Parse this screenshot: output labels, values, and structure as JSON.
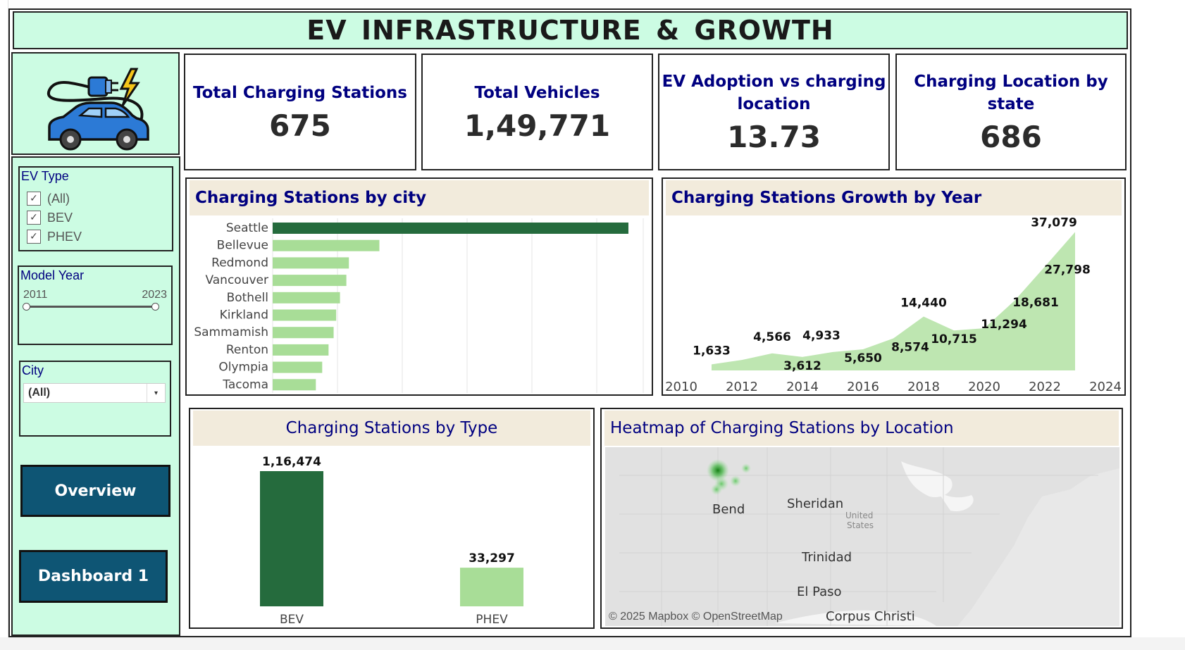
{
  "dashboard": {
    "title": "EV INFRASTRUCTURE & GROWTH"
  },
  "logo": {
    "icon": "ev-car-charger-icon"
  },
  "filters": {
    "ev_type": {
      "title": "EV Type",
      "options": [
        {
          "label": "(All)",
          "checked": true
        },
        {
          "label": "BEV",
          "checked": true
        },
        {
          "label": "PHEV",
          "checked": true
        }
      ]
    },
    "model_year": {
      "title": "Model Year",
      "min_label": "2011",
      "max_label": "2023",
      "min": 2011,
      "max": 2023
    },
    "city": {
      "title": "City",
      "value": "(All)"
    }
  },
  "nav": {
    "overview_label": "Overview",
    "dashboard1_label": "Dashboard 1",
    "button_color": "#0e5574"
  },
  "kpis": {
    "total_charging_stations": {
      "label": "Total Charging Stations",
      "value": "675"
    },
    "total_vehicles": {
      "label": "Total Vehicles",
      "value": "1,49,771"
    },
    "ev_adoption": {
      "label_line1": "EV Adoption vs charging",
      "label_line2": "location",
      "value": "13.73"
    },
    "charging_location_state": {
      "label": "Charging Location by state",
      "value": "686"
    }
  },
  "panels": {
    "by_city": {
      "title": "Charging Stations by city"
    },
    "growth": {
      "title": "Charging Stations Growth by Year"
    },
    "by_type": {
      "title": "Charging Stations by Type"
    },
    "heatmap": {
      "title": "Heatmap of Charging Stations by Location"
    }
  },
  "map": {
    "labels": [
      "Bend",
      "Sheridan",
      "United",
      "States",
      "Trinidad",
      "El Paso",
      "Corpus Christi"
    ],
    "attribution": "© 2025 Mapbox © OpenStreetMap"
  },
  "colors": {
    "mint": "#ccfce3",
    "header_beige": "#f2ebdc",
    "title_navy": "#000080",
    "dark_green": "#256b3d",
    "light_green": "#a8dd97"
  },
  "chart_data": [
    {
      "type": "bar",
      "orientation": "horizontal",
      "title": "Charging Stations by city",
      "categories": [
        "Seattle",
        "Bellevue",
        "Redmond",
        "Vancouver",
        "Bothell",
        "Kirkland",
        "Sammamish",
        "Renton",
        "Olympia",
        "Tacoma"
      ],
      "values": [
        28000,
        8400,
        6000,
        5800,
        5300,
        5000,
        4800,
        4400,
        3900,
        3400
      ],
      "highlight": "Seattle",
      "grid": true
    },
    {
      "type": "area",
      "title": "Charging Stations Growth by Year",
      "x": [
        2011,
        2012,
        2013,
        2014,
        2015,
        2016,
        2017,
        2018,
        2019,
        2020,
        2021,
        2022,
        2023
      ],
      "values": [
        1633,
        2800,
        4566,
        3612,
        4933,
        5650,
        8574,
        14440,
        10715,
        11294,
        18681,
        27798,
        37079
      ],
      "labels": [
        "1,633",
        "",
        "4,566",
        "3,612",
        "4,933",
        "5,650",
        "8,574",
        "14,440",
        "10,715",
        "11,294",
        "18,681",
        "27,798",
        "37,079"
      ],
      "x_ticks": [
        "2010",
        "2012",
        "2014",
        "2016",
        "2018",
        "2020",
        "2022",
        "2024"
      ],
      "xlim": [
        2010,
        2024
      ],
      "ylim": [
        0,
        40000
      ]
    },
    {
      "type": "bar",
      "title": "Charging Stations by Type",
      "categories": [
        "BEV",
        "PHEV"
      ],
      "values": [
        116474,
        33297
      ],
      "labels": [
        "1,16,474",
        "33,297"
      ],
      "ylim": [
        0,
        125000
      ]
    }
  ]
}
